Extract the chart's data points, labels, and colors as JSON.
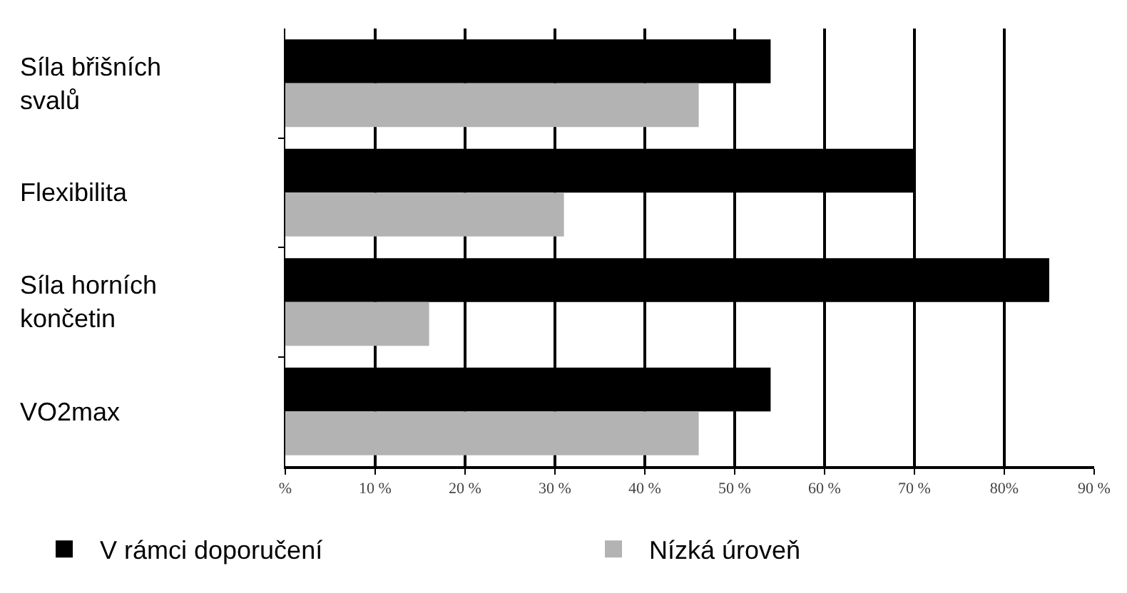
{
  "chart_data": {
    "type": "bar",
    "orientation": "horizontal",
    "categories": [
      "Síla břišních\nsvalů",
      "Flexibilita",
      "Síla horních\nkončetin",
      "VO2max"
    ],
    "series": [
      {
        "name": "V rámci doporučení",
        "color": "#000000",
        "values": [
          54,
          70,
          85,
          54
        ]
      },
      {
        "name": "Nízká úroveň",
        "color": "#b3b3b3",
        "values": [
          46,
          31,
          16,
          46
        ]
      }
    ],
    "xlim": [
      0,
      90
    ],
    "xticks": [
      {
        "value": 0,
        "label": "%"
      },
      {
        "value": 10,
        "label": "10 %"
      },
      {
        "value": 20,
        "label": "20 %"
      },
      {
        "value": 30,
        "label": "30 %"
      },
      {
        "value": 40,
        "label": "40 %"
      },
      {
        "value": 50,
        "label": "50 %"
      },
      {
        "value": 60,
        "label": "60 %"
      },
      {
        "value": 70,
        "label": "70 %"
      },
      {
        "value": 80,
        "label": "80%"
      },
      {
        "value": 90,
        "label": "90 %"
      }
    ],
    "grid": "x",
    "legend": "bottom"
  }
}
